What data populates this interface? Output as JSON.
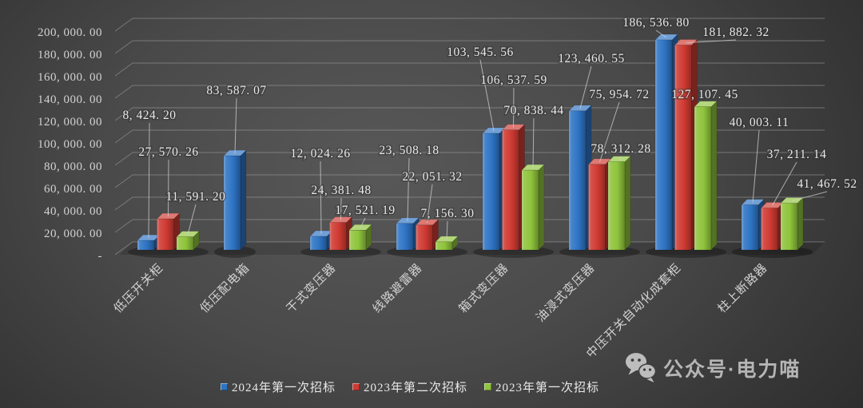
{
  "chart_data": {
    "type": "bar",
    "style": "3d-column-dark",
    "title": "",
    "categories": [
      "低压开关柜",
      "低压配电箱",
      "干式变压器",
      "线路避雷器",
      "箱式变压器",
      "油浸式变压器",
      "中压开关自动化成套柜",
      "柱上断路器"
    ],
    "series": [
      {
        "name": "2024年第一次招标",
        "color": "#2e74c4",
        "values": [
          8424.2,
          83587.07,
          12024.26,
          23508.18,
          103545.56,
          123460.55,
          186536.8,
          40003.11
        ],
        "labels": [
          "8, 424. 20",
          "83, 587. 07",
          "12, 024. 26",
          "23, 508. 18",
          "103, 545. 56",
          "123, 460. 55",
          "186, 536. 80",
          "40, 003. 11"
        ]
      },
      {
        "name": "2023年第二次招标",
        "color": "#cf3a32",
        "values": [
          27570.26,
          null,
          24381.48,
          22051.32,
          106537.59,
          75954.72,
          181882.32,
          37211.14
        ],
        "labels": [
          "27, 570. 26",
          null,
          "24, 381. 48",
          "22, 051. 32",
          "106, 537. 59",
          "75, 954. 72",
          "181, 882. 32",
          "37, 211. 14"
        ]
      },
      {
        "name": "2023年第一次招标",
        "color": "#8fc43c",
        "values": [
          11591.2,
          null,
          17521.19,
          7156.3,
          70838.44,
          78312.28,
          127107.45,
          41467.52
        ],
        "labels": [
          "11, 591. 20",
          null,
          "17, 521. 19",
          "7, 156. 30",
          "70, 838. 44",
          "78, 312. 28",
          "127, 107. 45",
          "41, 467. 52"
        ]
      }
    ],
    "y_axis": {
      "min": 0,
      "max": 200000,
      "step": 20000,
      "tick_labels": [
        "-",
        "20, 000. 00",
        "40, 000. 00",
        "60, 000. 00",
        "80, 000. 00",
        "100, 000. 00",
        "120, 000. 00",
        "140, 000. 00",
        "160, 000. 00",
        "180, 000. 00",
        "200, 000. 00"
      ]
    },
    "grid": true,
    "legend_position": "bottom"
  },
  "legend": {
    "items": [
      {
        "label": "2024年第一次招标",
        "color": "#2e74c4"
      },
      {
        "label": "2023年第二次招标",
        "color": "#cf3a32"
      },
      {
        "label": "2023年第一次招标",
        "color": "#8fc43c"
      }
    ]
  },
  "watermark": {
    "text": "公众号·电力喵",
    "icon": "wechat-icon"
  }
}
